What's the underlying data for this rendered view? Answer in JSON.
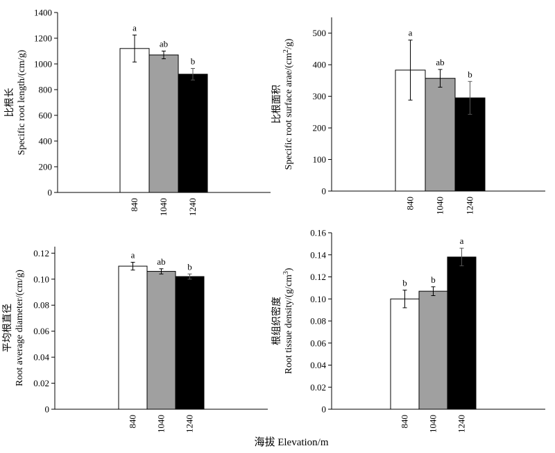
{
  "chart_data": [
    {
      "type": "bar",
      "ylabel_cn": "比根长",
      "ylabel_en": "Specific root length/(cm/g)",
      "ylabel_sup": "",
      "ylabel_end": "",
      "ylim": [
        0,
        1400
      ],
      "yticks": [
        0,
        200,
        400,
        600,
        800,
        1000,
        1200,
        1400
      ],
      "ytick_labels": [
        "0",
        "200",
        "400",
        "600",
        "800",
        "1000",
        "1200",
        "1400"
      ],
      "categories": [
        "840",
        "1040",
        "1240"
      ],
      "values": [
        1120,
        1070,
        920
      ],
      "errors": [
        105,
        30,
        45
      ],
      "significance": [
        "a",
        "ab",
        "b"
      ]
    },
    {
      "type": "bar",
      "ylabel_cn": "比根面积",
      "ylabel_en": "Specific root surface arae/(cm",
      "ylabel_sup": "2",
      "ylabel_end": "/g)",
      "ylim": [
        0,
        550
      ],
      "yticks": [
        0,
        100,
        200,
        300,
        400,
        500
      ],
      "ytick_labels": [
        "0",
        "100",
        "200",
        "300",
        "400",
        "500"
      ],
      "categories": [
        "840",
        "1040",
        "1240"
      ],
      "values": [
        383,
        357,
        295
      ],
      "errors": [
        95,
        28,
        52
      ],
      "significance": [
        "a",
        "ab",
        "b"
      ]
    },
    {
      "type": "bar",
      "ylabel_cn": "平均根直径",
      "ylabel_en": "Root average diameter/(cm/g)",
      "ylabel_sup": "",
      "ylabel_end": "",
      "ylim": [
        0,
        0.125
      ],
      "yticks": [
        0,
        0.02,
        0.04,
        0.06,
        0.08,
        0.1,
        0.12
      ],
      "ytick_labels": [
        "0",
        "0.02",
        "0.04",
        "0.06",
        "0.08",
        "0.10",
        "0.12"
      ],
      "categories": [
        "840",
        "1040",
        "1240"
      ],
      "values": [
        0.11,
        0.106,
        0.102
      ],
      "errors": [
        0.003,
        0.002,
        0.002
      ],
      "significance": [
        "a",
        "ab",
        "b"
      ]
    },
    {
      "type": "bar",
      "ylabel_cn": "根组织密度",
      "ylabel_en": "Root tissue density/(g/cm",
      "ylabel_sup": "3",
      "ylabel_end": ")",
      "ylim": [
        0,
        0.16
      ],
      "yticks": [
        0,
        0.02,
        0.04,
        0.06,
        0.08,
        0.1,
        0.12,
        0.14,
        0.16
      ],
      "ytick_labels": [
        "0",
        "0.02",
        "0.04",
        "0.06",
        "0.08",
        "0.10",
        "0.12",
        "0.14",
        "0.16"
      ],
      "categories": [
        "840",
        "1040",
        "1240"
      ],
      "values": [
        0.1,
        0.107,
        0.138
      ],
      "errors": [
        0.008,
        0.004,
        0.008
      ],
      "significance": [
        "b",
        "b",
        "a"
      ]
    }
  ],
  "xlabel": "海拔 Elevation/m",
  "colors": {
    "bar_840": "#ffffff",
    "bar_1040": "#a0a0a0",
    "bar_1240": "#000000",
    "axis": "#000000"
  }
}
